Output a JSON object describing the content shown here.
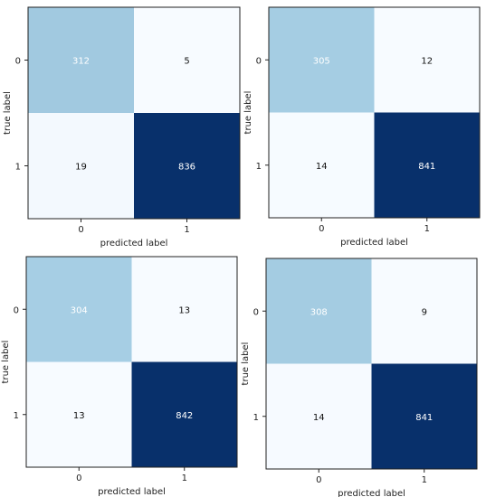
{
  "colors": {
    "high": "#08306b",
    "mid": "#a6cee4",
    "low": "#f7fbff",
    "text_dark_bg": "#ffffff",
    "text_light_bg": "#111111",
    "frame": "#222222"
  },
  "chart_data": [
    {
      "type": "heatmap",
      "xlabel": "predicted label",
      "ylabel": "true label",
      "x_categories": [
        "0",
        "1"
      ],
      "y_categories": [
        "0",
        "1"
      ],
      "values": [
        [
          312,
          5
        ],
        [
          19,
          836
        ]
      ]
    },
    {
      "type": "heatmap",
      "xlabel": "predicted label",
      "ylabel": "true label",
      "x_categories": [
        "0",
        "1"
      ],
      "y_categories": [
        "0",
        "1"
      ],
      "values": [
        [
          305,
          12
        ],
        [
          14,
          841
        ]
      ]
    },
    {
      "type": "heatmap",
      "xlabel": "predicted label",
      "ylabel": "true label",
      "x_categories": [
        "0",
        "1"
      ],
      "y_categories": [
        "0",
        "1"
      ],
      "values": [
        [
          304,
          13
        ],
        [
          13,
          842
        ]
      ]
    },
    {
      "type": "heatmap",
      "xlabel": "predicted label",
      "ylabel": "true label",
      "x_categories": [
        "0",
        "1"
      ],
      "y_categories": [
        "0",
        "1"
      ],
      "values": [
        [
          308,
          9
        ],
        [
          14,
          841
        ]
      ]
    }
  ]
}
